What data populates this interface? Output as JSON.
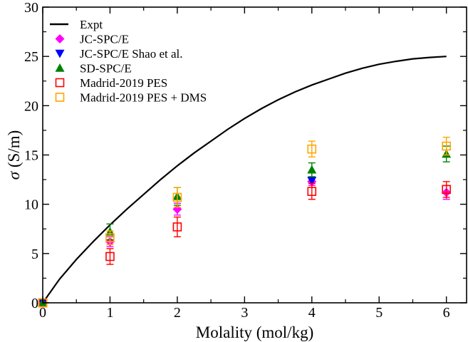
{
  "chart_data": {
    "type": "scatter",
    "xlabel": "Molality (mol/kg)",
    "ylabel_symbol": "σ",
    "ylabel_unit": " (S/m)",
    "xlim": [
      0,
      6.3
    ],
    "ylim": [
      0,
      30
    ],
    "xticks": [
      0,
      1,
      2,
      3,
      4,
      5,
      6
    ],
    "yticks": [
      0,
      5,
      10,
      15,
      20,
      25,
      30
    ],
    "grid": false,
    "legend_position": "top-left",
    "expt": {
      "name": "Expt",
      "color": "#000000",
      "x": [
        0,
        0.25,
        0.5,
        0.75,
        1,
        1.25,
        1.5,
        1.75,
        2,
        2.25,
        2.5,
        2.75,
        3,
        3.25,
        3.5,
        3.75,
        4,
        4.25,
        4.5,
        4.75,
        5,
        5.25,
        5.5,
        5.75,
        6
      ],
      "y": [
        0,
        2.4,
        4.4,
        6.2,
        7.9,
        9.5,
        11.0,
        12.5,
        13.9,
        15.2,
        16.4,
        17.6,
        18.7,
        19.7,
        20.6,
        21.4,
        22.1,
        22.7,
        23.3,
        23.8,
        24.2,
        24.5,
        24.75,
        24.9,
        25.0
      ]
    },
    "series": [
      {
        "name": "JC-SPC/E",
        "marker": "diamond",
        "color": "#ff00ff",
        "x": [
          0,
          1,
          2,
          4,
          6
        ],
        "y": [
          0,
          6.2,
          9.5,
          12.3,
          11.2
        ],
        "err": [
          0,
          0.5,
          0.6,
          0.4,
          0.7
        ]
      },
      {
        "name": "JC-SPC/E Shao et al.",
        "marker": "triangle-down",
        "color": "#0000ff",
        "x": [
          0,
          4
        ],
        "y": [
          0,
          12.4
        ],
        "err": [
          0,
          0
        ]
      },
      {
        "name": "SD-SPC/E",
        "marker": "triangle-up",
        "color": "#008000",
        "x": [
          0,
          1,
          2,
          4,
          6
        ],
        "y": [
          0,
          7.2,
          10.8,
          13.5,
          15.1
        ],
        "err": [
          0,
          0.8,
          0.9,
          0.7,
          0.8
        ]
      },
      {
        "name": "Madrid-2019 PES",
        "marker": "square-open",
        "color": "#ff0000",
        "x": [
          0,
          1,
          2,
          4,
          6
        ],
        "y": [
          0,
          4.7,
          7.7,
          11.3,
          11.5
        ],
        "err": [
          0,
          0.8,
          1.0,
          0.8,
          0.8
        ]
      },
      {
        "name": "Madrid-2019 PES + DMS",
        "marker": "square-open",
        "color": "#ffa500",
        "x": [
          0,
          1,
          2,
          4,
          6
        ],
        "y": [
          0,
          6.6,
          10.7,
          15.6,
          15.9
        ],
        "err": [
          0,
          0.7,
          1.0,
          0.8,
          0.9
        ]
      }
    ]
  }
}
